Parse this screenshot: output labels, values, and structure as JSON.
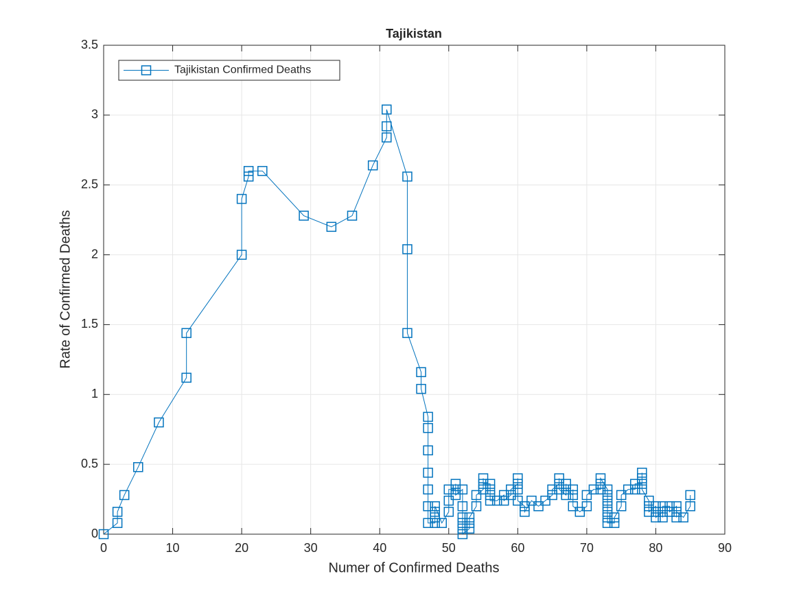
{
  "chart_data": {
    "type": "line",
    "title": "Tajikistan",
    "xlabel": "Numer of Confirmed Deaths",
    "ylabel": "Rate of Confirmed Deaths",
    "xlim": [
      0,
      90
    ],
    "xticks": [
      0,
      10,
      20,
      30,
      40,
      50,
      60,
      70,
      80,
      90
    ],
    "ylim": [
      0,
      3.5
    ],
    "yticks": [
      0,
      0.5,
      1,
      1.5,
      2,
      2.5,
      3,
      3.5
    ],
    "grid": true,
    "legend": "upper left",
    "marker": "square",
    "series": [
      {
        "name": "Tajikistan Confirmed Deaths",
        "color": "#0072bd",
        "x": [
          0,
          2,
          2,
          3,
          5,
          8,
          12,
          12,
          20,
          20,
          21,
          21,
          23,
          29,
          33,
          36,
          39,
          41,
          41,
          41,
          44,
          44,
          44,
          46,
          46,
          47,
          47,
          47,
          47,
          47,
          47,
          47,
          48,
          48,
          48,
          48,
          49,
          50,
          50,
          50,
          51,
          51,
          51,
          52,
          52,
          52,
          52,
          52,
          52,
          53,
          53,
          53,
          54,
          54,
          55,
          55,
          55,
          56,
          56,
          56,
          56,
          57,
          58,
          58,
          59,
          59,
          60,
          60,
          60,
          60,
          61,
          61,
          62,
          63,
          64,
          65,
          65,
          66,
          66,
          66,
          67,
          67,
          67,
          68,
          68,
          68,
          69,
          70,
          70,
          71,
          72,
          72,
          72,
          73,
          73,
          73,
          73,
          73,
          73,
          73,
          74,
          74,
          75,
          75,
          76,
          77,
          77,
          78,
          78,
          78,
          78,
          79,
          79,
          79,
          80,
          80,
          80,
          81,
          81,
          81,
          82,
          82,
          83,
          83,
          83,
          84,
          85,
          85
        ],
        "values": [
          0,
          0.08,
          0.16,
          0.28,
          0.48,
          0.8,
          1.12,
          1.44,
          2.0,
          2.4,
          2.56,
          2.6,
          2.6,
          2.28,
          2.2,
          2.28,
          2.64,
          2.84,
          2.92,
          3.04,
          2.56,
          2.04,
          1.44,
          1.16,
          1.04,
          0.84,
          0.76,
          0.6,
          0.44,
          0.32,
          0.2,
          0.08,
          0.08,
          0.12,
          0.16,
          0.2,
          0.08,
          0.16,
          0.24,
          0.32,
          0.32,
          0.36,
          0.28,
          0.32,
          0.2,
          0.12,
          0.08,
          0.04,
          0,
          0.04,
          0.08,
          0.12,
          0.2,
          0.28,
          0.32,
          0.4,
          0.36,
          0.36,
          0.32,
          0.28,
          0.24,
          0.24,
          0.28,
          0.24,
          0.28,
          0.32,
          0.36,
          0.4,
          0.32,
          0.24,
          0.2,
          0.16,
          0.24,
          0.2,
          0.24,
          0.28,
          0.32,
          0.36,
          0.4,
          0.32,
          0.28,
          0.36,
          0.32,
          0.28,
          0.32,
          0.2,
          0.16,
          0.2,
          0.28,
          0.32,
          0.32,
          0.36,
          0.4,
          0.32,
          0.28,
          0.24,
          0.2,
          0.16,
          0.12,
          0.08,
          0.08,
          0.12,
          0.2,
          0.28,
          0.32,
          0.32,
          0.36,
          0.36,
          0.4,
          0.44,
          0.32,
          0.24,
          0.2,
          0.16,
          0.2,
          0.16,
          0.12,
          0.16,
          0.12,
          0.2,
          0.2,
          0.16,
          0.2,
          0.12,
          0.16,
          0.12,
          0.2,
          0.28
        ]
      }
    ]
  }
}
